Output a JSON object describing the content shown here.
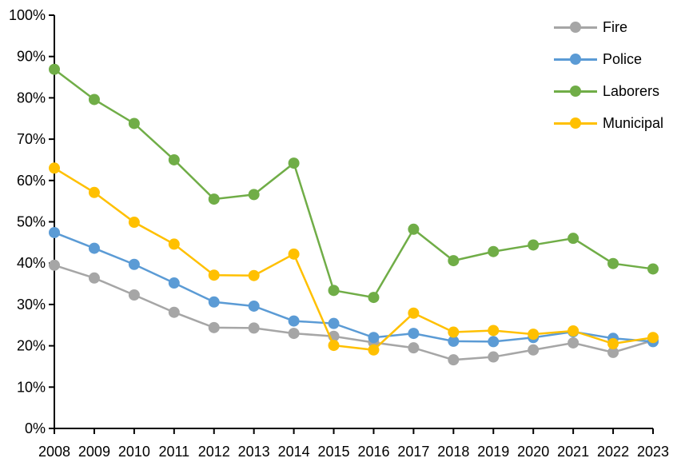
{
  "chart_data": {
    "type": "line",
    "title": "",
    "xlabel": "",
    "ylabel": "",
    "x": [
      2008,
      2009,
      2010,
      2011,
      2012,
      2013,
      2014,
      2015,
      2016,
      2017,
      2018,
      2019,
      2020,
      2021,
      2022,
      2023
    ],
    "series": [
      {
        "name": "Fire",
        "color": "#A6A6A6",
        "values": [
          39.5,
          36.4,
          32.3,
          28.1,
          24.4,
          24.3,
          23.0,
          22.3,
          20.8,
          19.5,
          16.6,
          17.3,
          19.0,
          20.7,
          18.4,
          21.3
        ]
      },
      {
        "name": "Police",
        "color": "#5B9BD5",
        "values": [
          47.4,
          43.6,
          39.7,
          35.2,
          30.6,
          29.6,
          26.0,
          25.4,
          22.0,
          23.0,
          21.1,
          21.0,
          22.0,
          23.4,
          21.8,
          21.0
        ]
      },
      {
        "name": "Laborers",
        "color": "#70AD47",
        "values": [
          86.9,
          79.6,
          73.8,
          65.0,
          55.5,
          56.6,
          64.2,
          33.4,
          31.7,
          48.2,
          40.6,
          42.8,
          44.4,
          46.0,
          39.9,
          38.6
        ]
      },
      {
        "name": "Municipal",
        "color": "#FFC000",
        "values": [
          63.0,
          57.1,
          49.9,
          44.6,
          37.1,
          37.0,
          42.2,
          20.1,
          19.0,
          27.9,
          23.3,
          23.7,
          22.8,
          23.6,
          20.5,
          22.0
        ]
      }
    ],
    "ylim": [
      0,
      100
    ],
    "y_tick_values": [
      0,
      10,
      20,
      30,
      40,
      50,
      60,
      70,
      80,
      90,
      100
    ],
    "y_tick_labels": [
      "0%",
      "10%",
      "20%",
      "30%",
      "40%",
      "50%",
      "60%",
      "70%",
      "80%",
      "90%",
      "100%"
    ],
    "grid": false,
    "legend_position": "top-right",
    "axis_color": "#000000",
    "background_color": "#FFFFFF"
  },
  "legend": {
    "items": [
      {
        "label": "Fire"
      },
      {
        "label": "Police"
      },
      {
        "label": "Laborers"
      },
      {
        "label": "Municipal"
      }
    ]
  }
}
